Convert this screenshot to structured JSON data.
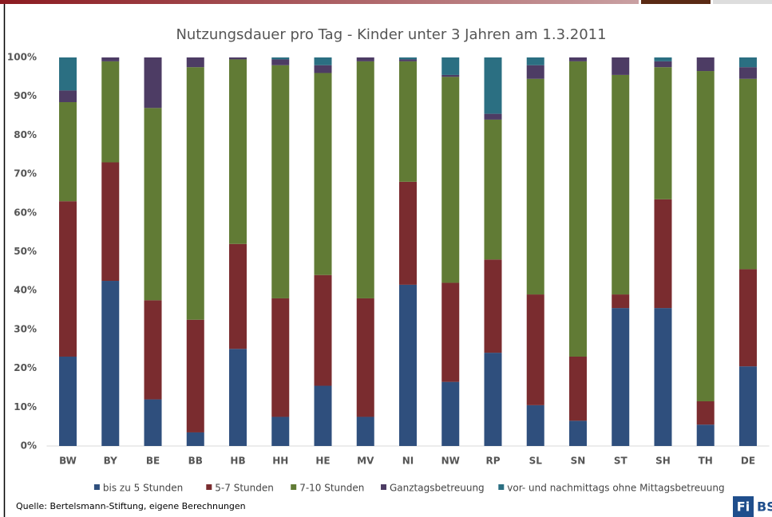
{
  "chart_data": {
    "type": "stacked_bar",
    "title": "Nutzungsdauer pro Tag - Kinder unter 3 Jahren am 1.3.2011",
    "categories": [
      "BW",
      "BY",
      "BE",
      "BB",
      "HB",
      "HH",
      "HE",
      "MV",
      "NI",
      "NW",
      "RP",
      "SL",
      "SN",
      "ST",
      "SH",
      "TH",
      "DE"
    ],
    "series": [
      {
        "name": "bis zu 5 Stunden",
        "color": "#2f4f7d",
        "values": [
          23,
          42.5,
          12,
          3.5,
          25,
          7.5,
          15.5,
          7.5,
          41.5,
          16.5,
          24,
          10.5,
          6.5,
          35.5,
          35.5,
          5.5,
          20.5
        ]
      },
      {
        "name": "5-7 Stunden",
        "color": "#7a2c2f",
        "values": [
          40,
          30.5,
          25.5,
          29,
          27,
          30.5,
          28.5,
          30.5,
          26.5,
          25.5,
          24,
          28.5,
          16.5,
          3.5,
          28,
          6,
          25
        ]
      },
      {
        "name": "7-10 Stunden",
        "color": "#617b35",
        "values": [
          25.5,
          26,
          49.5,
          65,
          47.5,
          60,
          52,
          61,
          31,
          53,
          36,
          55.5,
          76,
          56.5,
          34,
          85,
          49
        ]
      },
      {
        "name": "Ganztagsbetreuung",
        "color": "#4d3c64",
        "values": [
          3,
          1,
          13,
          2.5,
          0.5,
          1.5,
          2,
          1,
          0.5,
          0.5,
          1.5,
          3.5,
          1,
          4.5,
          1.5,
          3.5,
          3
        ]
      },
      {
        "name": "vor- und nachmittags ohne Mittagsbetreuung",
        "color": "#2b6f82",
        "values": [
          8.5,
          0,
          0,
          0,
          0,
          0.5,
          2,
          0,
          0.5,
          4.5,
          14.5,
          2,
          0,
          0,
          1,
          0,
          2.5
        ]
      }
    ],
    "ylim": [
      0,
      100
    ],
    "yticks": [
      {
        "value": 0,
        "label": "0%"
      },
      {
        "value": 10,
        "label": "10%"
      },
      {
        "value": 20,
        "label": "20%"
      },
      {
        "value": 30,
        "label": "30%"
      },
      {
        "value": 40,
        "label": "40%"
      },
      {
        "value": 50,
        "label": "50%"
      },
      {
        "value": 60,
        "label": "60%"
      },
      {
        "value": 70,
        "label": "70%"
      },
      {
        "value": 80,
        "label": "80%"
      },
      {
        "value": 90,
        "label": "90%"
      },
      {
        "value": 100,
        "label": "100%"
      }
    ],
    "grid": false,
    "legend": "bottom",
    "source": "Quelle: Bertelsmann-Stiftung, eigene Berechnungen"
  },
  "logo": {
    "box": "Fi",
    "text": "BS"
  }
}
